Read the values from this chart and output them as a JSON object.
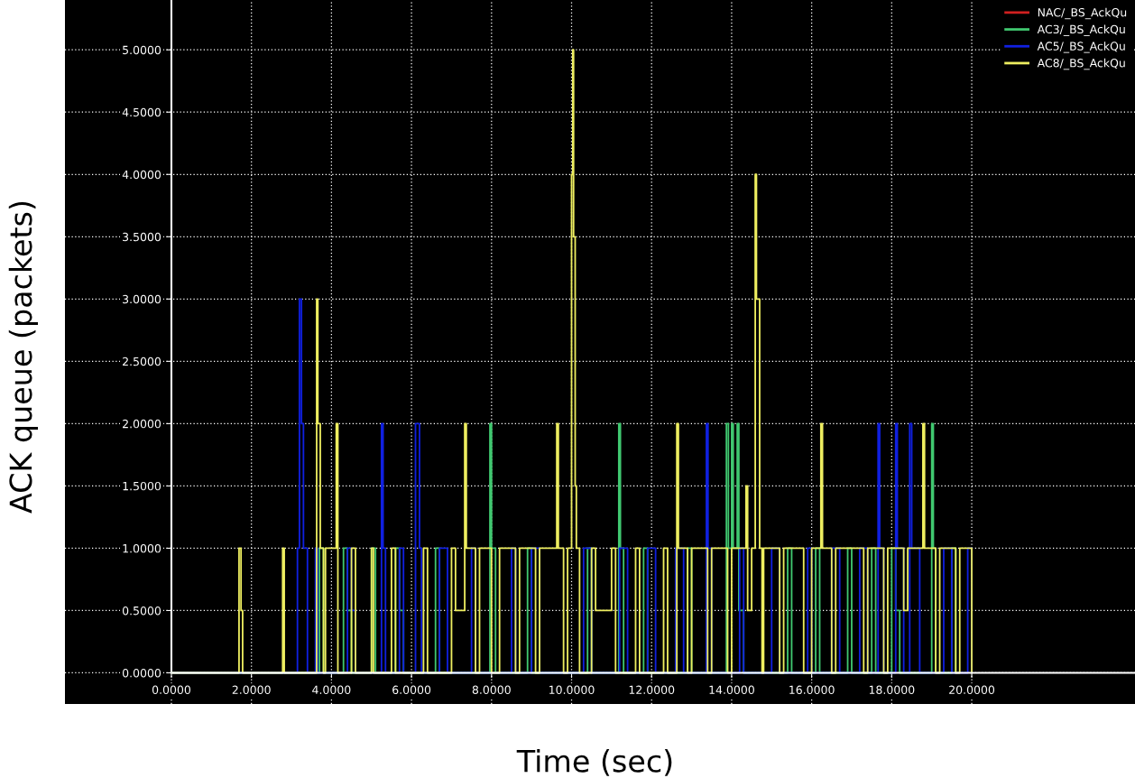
{
  "chart_data": {
    "type": "step",
    "xlabel": "Time (sec)",
    "ylabel": "ACK queue (packets)",
    "xlim": [
      -2.66,
      24.08
    ],
    "ylim": [
      -0.25,
      5.4
    ],
    "xticks": [
      {
        "value": 0,
        "label": "0.0000"
      },
      {
        "value": 2,
        "label": "2.0000"
      },
      {
        "value": 4,
        "label": "4.0000"
      },
      {
        "value": 6,
        "label": "6.0000"
      },
      {
        "value": 8,
        "label": "8.0000"
      },
      {
        "value": 10,
        "label": "10.0000"
      },
      {
        "value": 12,
        "label": "12.0000"
      },
      {
        "value": 14,
        "label": "14.0000"
      },
      {
        "value": 16,
        "label": "16.0000"
      },
      {
        "value": 18,
        "label": "18.0000"
      },
      {
        "value": 20,
        "label": "20.0000"
      }
    ],
    "yticks": [
      {
        "value": 0,
        "label": "0.0000"
      },
      {
        "value": 0.5,
        "label": "0.5000"
      },
      {
        "value": 1,
        "label": "1.0000"
      },
      {
        "value": 1.5,
        "label": "1.5000"
      },
      {
        "value": 2,
        "label": "2.0000"
      },
      {
        "value": 2.5,
        "label": "2.5000"
      },
      {
        "value": 3,
        "label": "3.0000"
      },
      {
        "value": 3.5,
        "label": "3.5000"
      },
      {
        "value": 4,
        "label": "4.0000"
      },
      {
        "value": 4.5,
        "label": "4.5000"
      },
      {
        "value": 5,
        "label": "5.0000"
      }
    ],
    "grid": true,
    "legend": "top right",
    "series": [
      {
        "name": "NAC/_BS_AckQu",
        "color": "#d02020"
      },
      {
        "name": "AC3/_BS_AckQu",
        "color": "#40c870",
        "x": [
          0,
          3.7,
          3.8,
          4.3,
          4.4,
          4.5,
          5.0,
          5.1,
          5.6,
          5.7,
          5.8,
          6.6,
          6.7,
          7.96,
          8.0,
          8.1,
          8.9,
          9.0,
          10.4,
          10.5,
          11.18,
          11.22,
          11.3,
          11.8,
          11.9,
          12.9,
          13.0,
          13.87,
          13.92,
          14.0,
          14.04,
          14.14,
          14.18,
          14.3,
          15.4,
          15.5,
          16.1,
          16.2,
          16.9,
          17.0,
          17.5,
          17.6,
          18.0,
          18.1,
          18.2,
          19.0,
          19.04,
          19.1,
          19.5,
          19.6
        ],
        "values": [
          0,
          1,
          0,
          1,
          0.5,
          0,
          1,
          0,
          1,
          0.5,
          0,
          1,
          0,
          2,
          1,
          0,
          1,
          0,
          1,
          0,
          2,
          1,
          0,
          1,
          0,
          1,
          0,
          2,
          1,
          2,
          1,
          2,
          0.5,
          0,
          1,
          0,
          1,
          0,
          1,
          0,
          1,
          0,
          1,
          0.5,
          0,
          2,
          1,
          0,
          1,
          0
        ]
      },
      {
        "name": "AC5/_BS_AckQu",
        "color": "#1020e0",
        "x": [
          0,
          3.15,
          3.2,
          3.25,
          3.3,
          3.4,
          3.6,
          3.65,
          4.4,
          4.5,
          4.6,
          5.25,
          5.29,
          5.35,
          5.7,
          5.8,
          6.1,
          6.2,
          6.25,
          6.7,
          6.9,
          7.5,
          7.6,
          8.5,
          8.6,
          9.0,
          9.2,
          10.3,
          10.5,
          11.2,
          11.4,
          11.9,
          12.1,
          12.6,
          12.8,
          13.37,
          13.41,
          13.5,
          14.2,
          14.3,
          15.0,
          15.2,
          15.9,
          16.0,
          16.5,
          16.7,
          17.2,
          17.4,
          17.66,
          17.7,
          17.8,
          18.1,
          18.14,
          18.3,
          18.45,
          18.5,
          18.7,
          19.3,
          19.5,
          19.9,
          20.0
        ],
        "values": [
          0,
          1,
          3,
          2,
          1,
          0,
          1,
          0,
          1,
          0.5,
          0,
          2,
          1,
          0,
          1,
          0,
          2,
          1,
          0,
          1,
          0,
          1,
          0,
          1,
          0,
          1,
          0,
          1,
          0,
          1,
          0,
          1,
          0,
          1,
          0,
          2,
          1,
          0,
          1,
          0,
          1,
          0,
          1,
          0,
          1,
          0,
          1,
          0,
          2,
          1,
          0,
          2,
          1,
          0,
          2,
          1,
          0,
          1,
          0,
          1,
          0
        ]
      },
      {
        "name": "AC8/_BS_AckQu",
        "color": "#eeee60",
        "x": [
          0,
          1.69,
          1.74,
          1.78,
          2.78,
          2.82,
          3.63,
          3.66,
          3.72,
          3.8,
          3.85,
          4.12,
          4.16,
          4.5,
          4.6,
          5.0,
          5.05,
          5.5,
          5.6,
          6.3,
          6.4,
          7.0,
          7.1,
          7.33,
          7.37,
          7.6,
          7.7,
          8.0,
          8.2,
          8.6,
          8.7,
          9.1,
          9.2,
          9.63,
          9.67,
          9.8,
          9.9,
          10.0,
          10.03,
          10.05,
          10.09,
          10.12,
          10.2,
          10.5,
          10.6,
          11.0,
          11.1,
          11.6,
          11.7,
          12.3,
          12.4,
          12.63,
          12.67,
          12.9,
          13.0,
          13.4,
          13.5,
          13.9,
          14.0,
          14.36,
          14.4,
          14.5,
          14.59,
          14.62,
          14.7,
          14.76,
          14.8,
          15.2,
          15.3,
          15.8,
          16.0,
          16.23,
          16.27,
          16.5,
          16.6,
          17.3,
          17.4,
          17.8,
          17.9,
          18.3,
          18.4,
          18.78,
          18.82,
          19.1,
          19.2,
          19.6,
          19.7,
          20.0
        ],
        "values": [
          0,
          1,
          0.5,
          0,
          1,
          0,
          3,
          2,
          1,
          0,
          1,
          2,
          0,
          1,
          0,
          1,
          0,
          1,
          0,
          1,
          0,
          1,
          0.5,
          2,
          1,
          0,
          1,
          0,
          1,
          0,
          1,
          0,
          1,
          2,
          1,
          0,
          1,
          4,
          5,
          3.5,
          1.5,
          1,
          0,
          1,
          0.5,
          1,
          0,
          1,
          0,
          1,
          0,
          2,
          1,
          0,
          1,
          0,
          1,
          0,
          1,
          1.5,
          0.5,
          1,
          4,
          3,
          1,
          0,
          1,
          0,
          1,
          0,
          1,
          2,
          1,
          0,
          1,
          0,
          1,
          0,
          1,
          0.5,
          1,
          2,
          1,
          0,
          1,
          0,
          1,
          0
        ]
      }
    ]
  }
}
